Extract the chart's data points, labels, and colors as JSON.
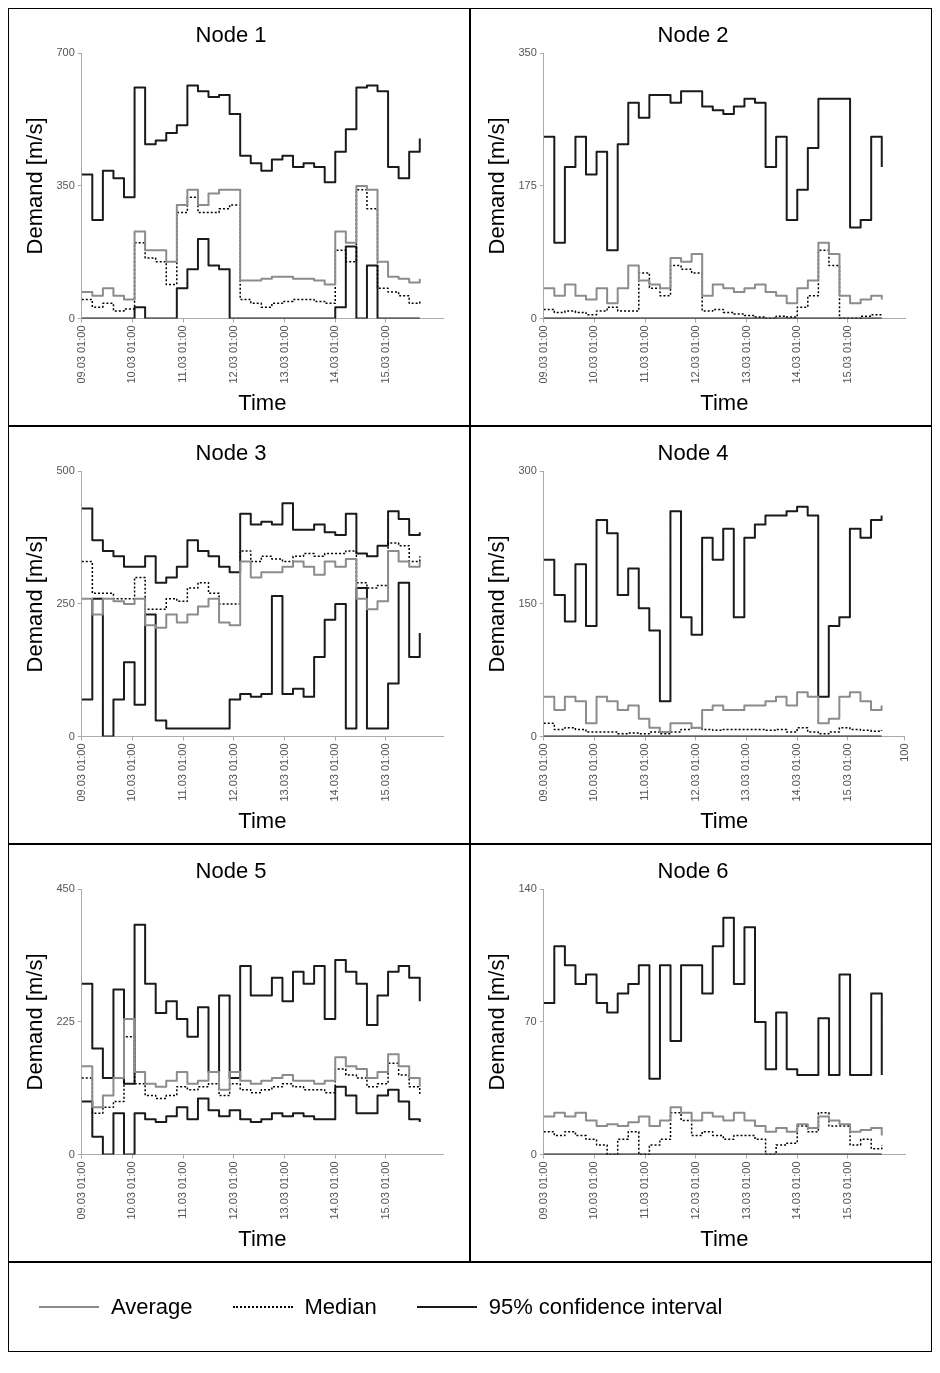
{
  "chart_data": [
    {
      "type": "step",
      "title": "Node 1",
      "xlabel": "Time",
      "ylabel": "Demand [m/s]",
      "legend": "bottom",
      "xlim": [
        "--03-09T01:00",
        "--03-16T04:00"
      ],
      "ylim": [
        0,
        700
      ],
      "yticks": [
        0,
        350,
        700
      ],
      "xticks": [
        {
          "value": "--03-09T01:00",
          "label": "09.03 01:00"
        },
        {
          "value": "--03-10T01:00",
          "label": "10.03 01:00"
        },
        {
          "value": "--03-11T01:00",
          "label": "11.03 01:00"
        },
        {
          "value": "--03-12T01:00",
          "label": "12.03 01:00"
        },
        {
          "value": "--03-13T01:00",
          "label": "13.03 01:00"
        },
        {
          "value": "--03-14T01:00",
          "label": "14.03 01:00"
        },
        {
          "value": "--03-15T01:00",
          "label": "15.03 01:00"
        }
      ],
      "x": [
        "--03-09T01:00",
        "--03-09T06:00",
        "--03-09T11:00",
        "--03-09T16:00",
        "--03-09T21:00",
        "--03-10T02:00",
        "--03-10T07:00",
        "--03-10T12:00",
        "--03-10T17:00",
        "--03-10T22:00",
        "--03-11T03:00",
        "--03-11T08:00",
        "--03-11T13:00",
        "--03-11T18:00",
        "--03-11T23:00",
        "--03-12T04:00",
        "--03-12T09:00",
        "--03-12T14:00",
        "--03-12T19:00",
        "--03-13T00:00",
        "--03-13T05:00",
        "--03-13T10:00",
        "--03-13T15:00",
        "--03-13T20:00",
        "--03-14T01:00",
        "--03-14T06:00",
        "--03-14T11:00",
        "--03-14T16:00",
        "--03-14T21:00",
        "--03-15T02:00",
        "--03-15T07:00",
        "--03-15T12:00",
        "--03-15T17:00"
      ],
      "series": [
        {
          "name": "Average",
          "color": "#8c8c8c",
          "values": [
            70,
            60,
            80,
            60,
            50,
            230,
            180,
            180,
            150,
            300,
            340,
            300,
            330,
            340,
            340,
            100,
            100,
            105,
            110,
            110,
            105,
            105,
            100,
            90,
            230,
            200,
            350,
            340,
            150,
            110,
            105,
            95,
            105
          ]
        },
        {
          "name": "Median",
          "color": "#000000",
          "line_style": "dotted",
          "values": [
            50,
            30,
            40,
            20,
            25,
            200,
            160,
            150,
            90,
            280,
            320,
            280,
            280,
            290,
            300,
            50,
            40,
            30,
            40,
            45,
            50,
            50,
            45,
            40,
            180,
            150,
            340,
            290,
            80,
            70,
            60,
            40,
            45
          ]
        },
        {
          "name": "95% confidence interval",
          "color": "#1a1a1a",
          "values": [
            380,
            260,
            390,
            370,
            320,
            610,
            460,
            470,
            490,
            510,
            615,
            600,
            585,
            590,
            540,
            430,
            410,
            390,
            420,
            430,
            400,
            410,
            400,
            360,
            440,
            500,
            610,
            615,
            600,
            400,
            370,
            440,
            475
          ]
        },
        {
          "color": "#1a1a1a",
          "values": [
            0,
            0,
            0,
            0,
            0,
            30,
            0,
            0,
            0,
            80,
            130,
            210,
            140,
            130,
            0,
            0,
            0,
            0,
            0,
            0,
            0,
            0,
            0,
            0,
            30,
            190,
            0,
            140,
            0,
            0,
            0,
            0,
            0
          ]
        }
      ]
    },
    {
      "type": "step",
      "title": "Node 2",
      "xlabel": "Time",
      "ylabel": "Demand [m/s]",
      "xlim": [
        "--03-09T01:00",
        "--03-16T04:00"
      ],
      "ylim": [
        0,
        350
      ],
      "yticks": [
        0,
        175,
        350
      ],
      "xticks": [
        {
          "value": "--03-09T01:00",
          "label": "09.03 01:00"
        },
        {
          "value": "--03-10T01:00",
          "label": "10.03 01:00"
        },
        {
          "value": "--03-11T01:00",
          "label": "11.03 01:00"
        },
        {
          "value": "--03-12T01:00",
          "label": "12.03 01:00"
        },
        {
          "value": "--03-13T01:00",
          "label": "13.03 01:00"
        },
        {
          "value": "--03-14T01:00",
          "label": "14.03 01:00"
        },
        {
          "value": "--03-15T01:00",
          "label": "15.03 01:00"
        }
      ],
      "x": [
        "--03-09T01:00",
        "--03-09T06:00",
        "--03-09T11:00",
        "--03-09T16:00",
        "--03-09T21:00",
        "--03-10T02:00",
        "--03-10T07:00",
        "--03-10T12:00",
        "--03-10T17:00",
        "--03-10T22:00",
        "--03-11T03:00",
        "--03-11T08:00",
        "--03-11T13:00",
        "--03-11T18:00",
        "--03-11T23:00",
        "--03-12T04:00",
        "--03-12T09:00",
        "--03-12T14:00",
        "--03-12T19:00",
        "--03-13T00:00",
        "--03-13T05:00",
        "--03-13T10:00",
        "--03-13T15:00",
        "--03-13T20:00",
        "--03-14T01:00",
        "--03-14T06:00",
        "--03-14T11:00",
        "--03-14T16:00",
        "--03-14T21:00",
        "--03-15T02:00",
        "--03-15T07:00",
        "--03-15T12:00",
        "--03-15T17:00"
      ],
      "series": [
        {
          "color": "#8c8c8c",
          "values": [
            40,
            30,
            45,
            30,
            25,
            40,
            20,
            40,
            70,
            50,
            45,
            40,
            80,
            75,
            85,
            30,
            45,
            40,
            35,
            40,
            45,
            35,
            30,
            20,
            40,
            50,
            100,
            85,
            30,
            20,
            25,
            30,
            25
          ]
        },
        {
          "color": "#000000",
          "line_style": "dotted",
          "values": [
            12,
            8,
            10,
            8,
            5,
            10,
            15,
            10,
            10,
            60,
            40,
            30,
            70,
            65,
            60,
            10,
            12,
            8,
            6,
            4,
            2,
            0,
            3,
            2,
            15,
            30,
            90,
            70,
            0,
            0,
            3,
            5,
            3
          ]
        },
        {
          "color": "#1a1a1a",
          "values": [
            240,
            100,
            200,
            240,
            190,
            220,
            90,
            230,
            285,
            265,
            295,
            295,
            285,
            300,
            300,
            280,
            275,
            270,
            280,
            290,
            285,
            200,
            240,
            130,
            170,
            225,
            290,
            290,
            290,
            120,
            130,
            240,
            200
          ]
        },
        {
          "color": "#1a1a1a",
          "values": [
            0,
            0,
            0,
            0,
            0,
            0,
            0,
            0,
            0,
            0,
            0,
            0,
            0,
            0,
            0,
            0,
            0,
            0,
            0,
            0,
            0,
            0,
            0,
            0,
            0,
            0,
            0,
            0,
            0,
            0,
            0,
            0,
            0
          ]
        }
      ]
    },
    {
      "type": "step",
      "title": "Node 3",
      "xlabel": "Time",
      "ylabel": "Demand [m/s]",
      "xlim": [
        "--03-09T01:00",
        "--03-16T04:00"
      ],
      "ylim": [
        0,
        500
      ],
      "yticks": [
        0,
        250,
        500
      ],
      "xticks": [
        {
          "value": "--03-09T01:00",
          "label": "09.03 01:00"
        },
        {
          "value": "--03-10T01:00",
          "label": "10.03 01:00"
        },
        {
          "value": "--03-11T01:00",
          "label": "11.03 01:00"
        },
        {
          "value": "--03-12T01:00",
          "label": "12.03 01:00"
        },
        {
          "value": "--03-13T01:00",
          "label": "13.03 01:00"
        },
        {
          "value": "--03-14T01:00",
          "label": "14.03 01:00"
        },
        {
          "value": "--03-15T01:00",
          "label": "15.03 01:00"
        }
      ],
      "x": [
        "--03-09T01:00",
        "--03-09T06:00",
        "--03-09T11:00",
        "--03-09T16:00",
        "--03-09T21:00",
        "--03-10T02:00",
        "--03-10T07:00",
        "--03-10T12:00",
        "--03-10T17:00",
        "--03-10T22:00",
        "--03-11T03:00",
        "--03-11T08:00",
        "--03-11T13:00",
        "--03-11T18:00",
        "--03-11T23:00",
        "--03-12T04:00",
        "--03-12T09:00",
        "--03-12T14:00",
        "--03-12T19:00",
        "--03-13T00:00",
        "--03-13T05:00",
        "--03-13T10:00",
        "--03-13T15:00",
        "--03-13T20:00",
        "--03-14T01:00",
        "--03-14T06:00",
        "--03-14T11:00",
        "--03-14T16:00",
        "--03-14T21:00",
        "--03-15T02:00",
        "--03-15T07:00",
        "--03-15T12:00",
        "--03-15T17:00"
      ],
      "series": [
        {
          "color": "#8c8c8c",
          "values": [
            260,
            230,
            260,
            255,
            250,
            260,
            210,
            205,
            230,
            215,
            230,
            245,
            260,
            215,
            210,
            330,
            300,
            310,
            310,
            320,
            330,
            320,
            305,
            330,
            320,
            335,
            260,
            240,
            255,
            350,
            330,
            320,
            330
          ]
        },
        {
          "color": "#000000",
          "line_style": "dotted",
          "values": [
            330,
            270,
            270,
            260,
            260,
            300,
            240,
            240,
            260,
            255,
            280,
            290,
            270,
            250,
            250,
            350,
            330,
            340,
            335,
            330,
            340,
            345,
            340,
            345,
            345,
            350,
            290,
            280,
            285,
            365,
            360,
            330,
            340
          ]
        },
        {
          "color": "#1a1a1a",
          "values": [
            430,
            370,
            350,
            340,
            320,
            320,
            340,
            290,
            300,
            320,
            370,
            350,
            340,
            320,
            310,
            420,
            400,
            405,
            400,
            440,
            390,
            390,
            400,
            385,
            380,
            420,
            345,
            340,
            360,
            425,
            410,
            380,
            385
          ]
        },
        {
          "color": "#1a1a1a",
          "values": [
            70,
            260,
            0,
            70,
            140,
            60,
            230,
            30,
            15,
            15,
            15,
            15,
            15,
            15,
            70,
            80,
            75,
            80,
            265,
            80,
            90,
            75,
            150,
            220,
            250,
            15,
            280,
            15,
            15,
            100,
            290,
            150,
            195
          ]
        }
      ]
    },
    {
      "type": "step",
      "title": "Node 4",
      "xlabel": "Time",
      "ylabel": "Demand [m/s]",
      "xlim": [
        "--03-09T01:00",
        "--03-16T04:00"
      ],
      "ylim": [
        0,
        300
      ],
      "yticks": [
        0,
        150,
        300
      ],
      "xticks": [
        {
          "value": "--03-09T01:00",
          "label": "09.03 01:00"
        },
        {
          "value": "--03-10T01:00",
          "label": "10.03 01:00"
        },
        {
          "value": "--03-11T01:00",
          "label": "11.03 01:00"
        },
        {
          "value": "--03-12T01:00",
          "label": "12.03 01:00"
        },
        {
          "value": "--03-13T01:00",
          "label": "13.03 01:00"
        },
        {
          "value": "--03-14T01:00",
          "label": "14.03 01:00"
        },
        {
          "value": "--03-15T01:00",
          "label": "15.03 01:00"
        },
        {
          "value": "--03-16T04:00",
          "label": "100"
        }
      ],
      "x": [
        "--03-09T01:00",
        "--03-09T06:00",
        "--03-09T11:00",
        "--03-09T16:00",
        "--03-09T21:00",
        "--03-10T02:00",
        "--03-10T07:00",
        "--03-10T12:00",
        "--03-10T17:00",
        "--03-10T22:00",
        "--03-11T03:00",
        "--03-11T08:00",
        "--03-11T13:00",
        "--03-11T18:00",
        "--03-11T23:00",
        "--03-12T04:00",
        "--03-12T09:00",
        "--03-12T14:00",
        "--03-12T19:00",
        "--03-13T00:00",
        "--03-13T05:00",
        "--03-13T10:00",
        "--03-13T15:00",
        "--03-13T20:00",
        "--03-14T01:00",
        "--03-14T06:00",
        "--03-14T11:00",
        "--03-14T16:00",
        "--03-14T21:00",
        "--03-15T02:00",
        "--03-15T07:00",
        "--03-15T12:00",
        "--03-15T17:00"
      ],
      "series": [
        {
          "color": "#8c8c8c",
          "values": [
            45,
            30,
            45,
            40,
            15,
            45,
            40,
            30,
            35,
            20,
            10,
            5,
            15,
            15,
            10,
            30,
            35,
            30,
            30,
            35,
            35,
            40,
            45,
            35,
            50,
            45,
            15,
            20,
            45,
            50,
            40,
            30,
            35
          ]
        },
        {
          "color": "#000000",
          "line_style": "dotted",
          "values": [
            15,
            8,
            10,
            8,
            5,
            5,
            5,
            3,
            4,
            3,
            5,
            3,
            5,
            8,
            10,
            8,
            7,
            8,
            8,
            8,
            8,
            7,
            8,
            5,
            10,
            5,
            3,
            5,
            10,
            8,
            7,
            6,
            7
          ]
        },
        {
          "color": "#1a1a1a",
          "values": [
            200,
            160,
            130,
            195,
            125,
            245,
            230,
            160,
            190,
            145,
            120,
            40,
            255,
            135,
            115,
            225,
            200,
            235,
            135,
            225,
            240,
            250,
            250,
            255,
            260,
            250,
            45,
            125,
            135,
            235,
            225,
            245,
            250
          ]
        },
        {
          "color": "#1a1a1a",
          "values": [
            0,
            0,
            0,
            0,
            0,
            0,
            0,
            0,
            0,
            0,
            0,
            0,
            0,
            0,
            0,
            0,
            0,
            0,
            0,
            0,
            0,
            0,
            0,
            0,
            0,
            0,
            0,
            0,
            0,
            0,
            0,
            0,
            0
          ]
        }
      ]
    },
    {
      "type": "step",
      "title": "Node 5",
      "xlabel": "Time",
      "ylabel": "Demand [m/s]",
      "xlim": [
        "--03-09T01:00",
        "--03-16T04:00"
      ],
      "ylim": [
        0,
        450
      ],
      "yticks": [
        0,
        225,
        450
      ],
      "xticks": [
        {
          "value": "--03-09T01:00",
          "label": "09.03 01:00"
        },
        {
          "value": "--03-10T01:00",
          "label": "10.03 01:00"
        },
        {
          "value": "--03-11T01:00",
          "label": "11.03 01:00"
        },
        {
          "value": "--03-12T01:00",
          "label": "12.03 01:00"
        },
        {
          "value": "--03-13T01:00",
          "label": "13.03 01:00"
        },
        {
          "value": "--03-14T01:00",
          "label": "14.03 01:00"
        },
        {
          "value": "--03-15T01:00",
          "label": "15.03 01:00"
        }
      ],
      "x": [
        "--03-09T01:00",
        "--03-09T06:00",
        "--03-09T11:00",
        "--03-09T16:00",
        "--03-09T21:00",
        "--03-10T02:00",
        "--03-10T07:00",
        "--03-10T12:00",
        "--03-10T17:00",
        "--03-10T22:00",
        "--03-11T03:00",
        "--03-11T08:00",
        "--03-11T13:00",
        "--03-11T18:00",
        "--03-11T23:00",
        "--03-12T04:00",
        "--03-12T09:00",
        "--03-12T14:00",
        "--03-12T19:00",
        "--03-13T00:00",
        "--03-13T05:00",
        "--03-13T10:00",
        "--03-13T15:00",
        "--03-13T20:00",
        "--03-14T01:00",
        "--03-14T06:00",
        "--03-14T11:00",
        "--03-14T16:00",
        "--03-14T21:00",
        "--03-15T02:00",
        "--03-15T07:00",
        "--03-15T12:00",
        "--03-15T17:00"
      ],
      "series": [
        {
          "color": "#8c8c8c",
          "values": [
            150,
            80,
            100,
            130,
            230,
            140,
            120,
            115,
            125,
            140,
            120,
            125,
            140,
            110,
            140,
            125,
            120,
            125,
            130,
            135,
            125,
            125,
            120,
            125,
            165,
            150,
            145,
            130,
            140,
            170,
            150,
            130,
            115
          ]
        },
        {
          "color": "#000000",
          "line_style": "dotted",
          "values": [
            130,
            70,
            80,
            90,
            200,
            120,
            100,
            95,
            100,
            115,
            110,
            115,
            120,
            100,
            120,
            110,
            105,
            110,
            115,
            120,
            115,
            110,
            110,
            105,
            145,
            135,
            130,
            115,
            120,
            155,
            135,
            115,
            100
          ]
        },
        {
          "color": "#1a1a1a",
          "values": [
            290,
            180,
            130,
            280,
            120,
            390,
            290,
            240,
            260,
            230,
            200,
            250,
            140,
            270,
            130,
            320,
            270,
            270,
            300,
            260,
            310,
            290,
            320,
            230,
            330,
            310,
            290,
            220,
            270,
            310,
            320,
            300,
            260
          ]
        },
        {
          "color": "#1a1a1a",
          "values": [
            90,
            30,
            0,
            70,
            0,
            70,
            60,
            55,
            65,
            80,
            60,
            95,
            75,
            65,
            75,
            60,
            55,
            60,
            70,
            65,
            70,
            65,
            60,
            60,
            115,
            100,
            70,
            70,
            100,
            110,
            90,
            60,
            55
          ]
        }
      ]
    },
    {
      "type": "step",
      "title": "Node 6",
      "xlabel": "Time",
      "ylabel": "Demand [m/s]",
      "xlim": [
        "--03-09T01:00",
        "--03-16T04:00"
      ],
      "ylim": [
        0,
        140
      ],
      "yticks": [
        0,
        70,
        140
      ],
      "xticks": [
        {
          "value": "--03-09T01:00",
          "label": "09.03 01:00"
        },
        {
          "value": "--03-10T01:00",
          "label": "10.03 01:00"
        },
        {
          "value": "--03-11T01:00",
          "label": "11.03 01:00"
        },
        {
          "value": "--03-12T01:00",
          "label": "12.03 01:00"
        },
        {
          "value": "--03-13T01:00",
          "label": "13.03 01:00"
        },
        {
          "value": "--03-14T01:00",
          "label": "14.03 01:00"
        },
        {
          "value": "--03-15T01:00",
          "label": "15.03 01:00"
        }
      ],
      "x": [
        "--03-09T01:00",
        "--03-09T06:00",
        "--03-09T11:00",
        "--03-09T16:00",
        "--03-09T21:00",
        "--03-10T02:00",
        "--03-10T07:00",
        "--03-10T12:00",
        "--03-10T17:00",
        "--03-10T22:00",
        "--03-11T03:00",
        "--03-11T08:00",
        "--03-11T13:00",
        "--03-11T18:00",
        "--03-11T23:00",
        "--03-12T04:00",
        "--03-12T09:00",
        "--03-12T14:00",
        "--03-12T19:00",
        "--03-13T00:00",
        "--03-13T05:00",
        "--03-13T10:00",
        "--03-13T15:00",
        "--03-13T20:00",
        "--03-14T01:00",
        "--03-14T06:00",
        "--03-14T11:00",
        "--03-14T16:00",
        "--03-14T21:00",
        "--03-15T02:00",
        "--03-15T07:00",
        "--03-15T12:00",
        "--03-15T17:00"
      ],
      "series": [
        {
          "color": "#8c8c8c",
          "values": [
            20,
            22,
            20,
            22,
            18,
            15,
            16,
            15,
            17,
            20,
            15,
            18,
            25,
            22,
            18,
            22,
            20,
            18,
            22,
            18,
            15,
            12,
            14,
            12,
            16,
            14,
            20,
            18,
            16,
            12,
            13,
            14,
            10
          ]
        },
        {
          "color": "#000000",
          "line_style": "dotted",
          "values": [
            12,
            10,
            12,
            10,
            8,
            5,
            0,
            8,
            12,
            0,
            5,
            8,
            22,
            18,
            10,
            12,
            10,
            8,
            10,
            10,
            8,
            0,
            5,
            6,
            15,
            12,
            22,
            15,
            15,
            5,
            8,
            3,
            5
          ]
        },
        {
          "color": "#1a1a1a",
          "values": [
            80,
            110,
            100,
            90,
            95,
            80,
            75,
            85,
            90,
            100,
            40,
            100,
            60,
            100,
            100,
            85,
            110,
            125,
            90,
            120,
            70,
            45,
            75,
            45,
            42,
            42,
            72,
            42,
            95,
            42,
            42,
            85,
            42
          ]
        },
        {
          "color": "#1a1a1a",
          "values": [
            0,
            0,
            0,
            0,
            0,
            0,
            0,
            0,
            0,
            0,
            0,
            0,
            0,
            0,
            0,
            0,
            0,
            0,
            0,
            0,
            0,
            0,
            0,
            0,
            0,
            0,
            0,
            0,
            0,
            0,
            0,
            0,
            0
          ]
        }
      ]
    }
  ]
}
